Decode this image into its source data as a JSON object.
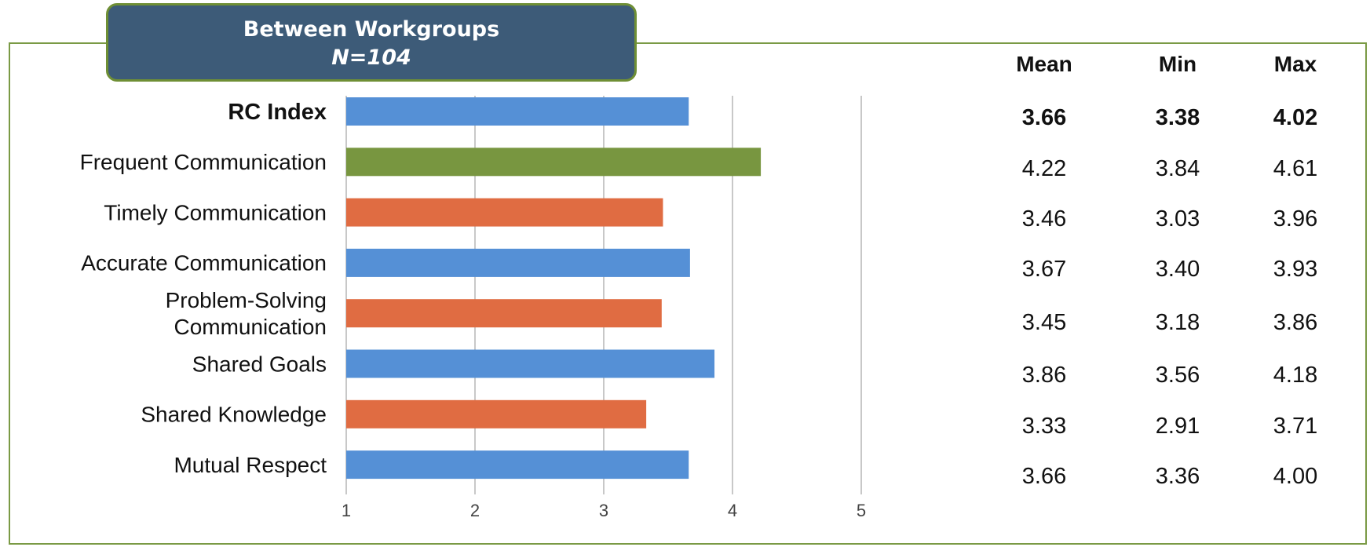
{
  "title": {
    "line1": "Between Workgroups",
    "line2": "N=104"
  },
  "table_header": {
    "mean": "Mean",
    "min": "Min",
    "max": "Max"
  },
  "colors": {
    "blue": "#5590d6",
    "green": "#789640",
    "orange": "#e06c42",
    "frame": "#7a9a45",
    "title_bg": "#3d5b78",
    "grid": "#c8c8c8"
  },
  "chart_data": {
    "type": "bar",
    "orientation": "horizontal",
    "xlim": [
      1,
      5
    ],
    "xticks": [
      "1",
      "2",
      "3",
      "4",
      "5"
    ],
    "grid": true,
    "categories": [
      {
        "label": "RC Index",
        "bold": true,
        "color": "blue"
      },
      {
        "label": "Frequent Communication",
        "bold": false,
        "color": "green"
      },
      {
        "label": "Timely Communication",
        "bold": false,
        "color": "orange"
      },
      {
        "label": "Accurate Communication",
        "bold": false,
        "color": "blue"
      },
      {
        "label": "Problem-Solving\nCommunication",
        "bold": false,
        "color": "orange"
      },
      {
        "label": "Shared Goals",
        "bold": false,
        "color": "blue"
      },
      {
        "label": "Shared Knowledge",
        "bold": false,
        "color": "orange"
      },
      {
        "label": "Mutual Respect",
        "bold": false,
        "color": "blue"
      }
    ],
    "values": [
      3.66,
      4.22,
      3.46,
      3.67,
      3.45,
      3.86,
      3.33,
      3.66
    ]
  },
  "table_rows": [
    {
      "mean": "3.66",
      "min": "3.38",
      "max": "4.02",
      "bold": true
    },
    {
      "mean": "4.22",
      "min": "3.84",
      "max": "4.61",
      "bold": false
    },
    {
      "mean": "3.46",
      "min": "3.03",
      "max": "3.96",
      "bold": false
    },
    {
      "mean": "3.67",
      "min": "3.40",
      "max": "3.93",
      "bold": false
    },
    {
      "mean": "3.45",
      "min": "3.18",
      "max": "3.86",
      "bold": false
    },
    {
      "mean": "3.86",
      "min": "3.56",
      "max": "4.18",
      "bold": false
    },
    {
      "mean": "3.33",
      "min": "2.91",
      "max": "3.71",
      "bold": false
    },
    {
      "mean": "3.66",
      "min": "3.36",
      "max": "4.00",
      "bold": false
    }
  ]
}
